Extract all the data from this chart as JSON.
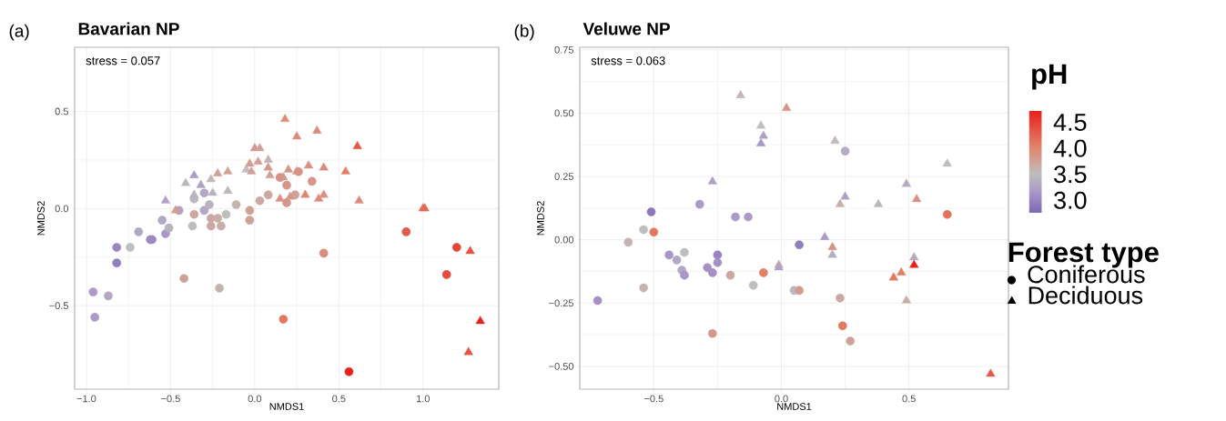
{
  "chart_data": [
    {
      "type": "scatter",
      "title": "Bavarian NP",
      "xlabel": "NMDS1",
      "ylabel": "NMDS2",
      "annotations": [
        "(a)",
        "stress = 0.057"
      ],
      "xlim": [
        -1.07,
        1.45
      ],
      "ylim": [
        -0.93,
        0.83
      ],
      "xticks": [
        {
          "value": -1.0,
          "label": "−1.0"
        },
        {
          "value": -0.5,
          "label": "−0.5"
        },
        {
          "value": 0.0,
          "label": "0.0"
        },
        {
          "value": 0.5,
          "label": "0.5"
        },
        {
          "value": 1.0,
          "label": "1.0"
        }
      ],
      "yticks": [
        {
          "value": -0.5,
          "label": "−0.5"
        },
        {
          "value": 0.0,
          "label": "0.0"
        },
        {
          "value": 0.5,
          "label": "0.5"
        }
      ],
      "grid": true,
      "series": [
        {
          "marker": "circle",
          "x": [
            -0.96,
            -0.87,
            -0.95,
            -0.82,
            -0.82,
            -0.74,
            -0.69,
            -0.62,
            -0.61,
            -0.55,
            -0.53,
            -0.51,
            -0.45,
            -0.42,
            -0.37,
            -0.36,
            -0.36,
            -0.3,
            -0.3,
            -0.27,
            -0.26,
            -0.26,
            -0.22,
            -0.2,
            -0.21,
            -0.17,
            -0.11,
            -0.03,
            -0.03,
            0.03,
            0.08,
            0.15,
            0.19,
            0.19,
            0.24,
            0.26,
            0.34,
            0.41,
            0.17,
            0.56,
            0.9,
            1.2,
            1.14
          ],
          "values": [
            -0.43,
            -0.45,
            -0.56,
            -0.2,
            -0.28,
            -0.2,
            -0.12,
            -0.16,
            -0.16,
            -0.06,
            -0.13,
            -0.1,
            -0.01,
            -0.36,
            -0.09,
            -0.03,
            0.05,
            0.08,
            -0.01,
            0.02,
            -0.05,
            -0.09,
            -0.05,
            -0.09,
            -0.41,
            -0.03,
            0.02,
            -0.01,
            -0.06,
            0.04,
            0.07,
            0.16,
            0.12,
            0.03,
            0.07,
            0.19,
            0.14,
            -0.23,
            -0.57,
            -0.84,
            -0.12,
            -0.2,
            -0.34
          ],
          "colors": [
            "#ad9bc7",
            "#b2a7c4",
            "#ad9bc7",
            "#9784c0",
            "#917ebe",
            "#bebebe",
            "#b2a7c4",
            "#9784c0",
            "#9e89c3",
            "#b2a7c4",
            "#aa96c8",
            "#b8b2c1",
            "#b0a1c5",
            "#cfa299",
            "#bebebe",
            "#cba8a1",
            "#bbb8bf",
            "#b2a7c4",
            "#b2a7c4",
            "#b8b2c1",
            "#cba8a1",
            "#cba8a1",
            "#c8ada8",
            "#c8ada8",
            "#c5b3af",
            "#bebebe",
            "#c5b3af",
            "#cfa299",
            "#cfa299",
            "#cba8a1",
            "#cba8a1",
            "#d99183",
            "#d5978b",
            "#d5978b",
            "#cfa299",
            "#d99183",
            "#d5978b",
            "#dc8c7c",
            "#e37861",
            "#e8211b",
            "#e45a49",
            "#e64437",
            "#e54c3d"
          ]
        },
        {
          "marker": "triangle",
          "x": [
            -0.53,
            -0.47,
            -0.41,
            -0.36,
            -0.36,
            -0.32,
            -0.26,
            -0.25,
            -0.22,
            -0.16,
            -0.16,
            -0.05,
            -0.03,
            -0.02,
            0.0,
            0.03,
            0.02,
            0.08,
            0.08,
            0.09,
            0.15,
            0.17,
            0.18,
            0.2,
            0.21,
            0.25,
            0.25,
            0.3,
            0.32,
            0.37,
            0.38,
            0.41,
            0.41,
            0.54,
            0.61,
            0.62,
            1.0,
            1.01,
            1.28,
            1.34,
            1.27
          ],
          "values": [
            0.04,
            -0.01,
            0.13,
            0.17,
            0.07,
            0.12,
            0.15,
            0.08,
            0.18,
            0.19,
            0.09,
            0.2,
            0.23,
            0.19,
            0.31,
            0.31,
            0.24,
            0.21,
            0.25,
            0.17,
            0.05,
            0.16,
            0.46,
            0.2,
            0.06,
            0.37,
            0.19,
            0.07,
            0.22,
            0.4,
            0.05,
            0.07,
            0.21,
            0.19,
            0.32,
            0.04,
            0.0,
            0.0,
            -0.22,
            -0.58,
            -0.74
          ],
          "colors": [
            "#b0a1c5",
            "#d29d92",
            "#bbb8bf",
            "#ad9bc7",
            "#b8b2c1",
            "#b0a1c5",
            "#c1b8b7",
            "#b8b2c1",
            "#cfa299",
            "#cfa299",
            "#c1b8b7",
            "#bebebe",
            "#d29d92",
            "#cfa299",
            "#d5978b",
            "#cfa299",
            "#d29d92",
            "#d5978b",
            "#c5b3af",
            "#cfa299",
            "#d99183",
            "#d5978b",
            "#dc8c7c",
            "#d5978b",
            "#d5978b",
            "#dc8c7c",
            "#d99183",
            "#e08674",
            "#d99183",
            "#dc8c7c",
            "#dc8c7c",
            "#d99183",
            "#dc8c7c",
            "#e28067",
            "#e45a49",
            "#dc8c7c",
            "#e3715b",
            "#e46955",
            "#e55343",
            "#e8211b",
            "#e55343"
          ]
        }
      ]
    },
    {
      "type": "scatter",
      "title": "Veluwe NP",
      "xlabel": "NMDS1",
      "ylabel": "NMDS2",
      "annotations": [
        "(b)",
        "stress = 0.063"
      ],
      "xlim": [
        -0.79,
        0.89
      ],
      "ylim": [
        -0.59,
        0.76
      ],
      "xticks": [
        {
          "value": -0.5,
          "label": "−0.5"
        },
        {
          "value": 0.0,
          "label": "0.0"
        },
        {
          "value": 0.5,
          "label": "0.5"
        }
      ],
      "yticks": [
        {
          "value": -0.5,
          "label": "−0.50"
        },
        {
          "value": -0.25,
          "label": "−0.25"
        },
        {
          "value": 0.0,
          "label": "0.00"
        },
        {
          "value": 0.25,
          "label": "0.25"
        },
        {
          "value": 0.5,
          "label": "0.50"
        },
        {
          "value": 0.75,
          "label": "0.75"
        }
      ],
      "grid": true,
      "clim": [
        2.76,
        4.72
      ],
      "clabel": "pH",
      "cticks": [
        {
          "value": 3.0,
          "label": "3.0"
        },
        {
          "value": 3.5,
          "label": "3.5"
        },
        {
          "value": 4.0,
          "label": "4.0"
        },
        {
          "value": 4.5,
          "label": "4.5"
        }
      ],
      "legend": "right",
      "legend_title": "Forest type",
      "series": [
        {
          "name": "Coniferous",
          "marker": "circle",
          "x": [
            -0.72,
            -0.6,
            -0.54,
            -0.54,
            -0.51,
            -0.5,
            -0.44,
            -0.41,
            -0.38,
            -0.39,
            -0.38,
            -0.32,
            -0.29,
            -0.27,
            -0.25,
            -0.25,
            -0.27,
            -0.2,
            -0.18,
            -0.13,
            -0.11,
            -0.07,
            0.05,
            0.07,
            0.07,
            0.25,
            0.23,
            0.24,
            0.27,
            0.65
          ],
          "values": [
            -0.24,
            -0.01,
            0.04,
            -0.19,
            0.11,
            0.03,
            -0.06,
            -0.08,
            -0.05,
            -0.12,
            -0.14,
            0.14,
            -0.11,
            -0.13,
            -0.06,
            -0.09,
            -0.37,
            -0.14,
            0.09,
            0.09,
            -0.18,
            -0.13,
            -0.2,
            -0.2,
            -0.02,
            0.35,
            -0.23,
            -0.34,
            -0.4,
            0.1
          ],
          "colors": [
            "#a490c5",
            "#c5b3af",
            "#bebebe",
            "#c5b3af",
            "#8b78bb",
            "#e37861",
            "#aa96c8",
            "#b2a7c4",
            "#bebebe",
            "#b2a7c4",
            "#aa96c8",
            "#ad9bc7",
            "#a490c5",
            "#a490c5",
            "#9784c0",
            "#a490c5",
            "#d5978b",
            "#cba8a1",
            "#ad9bc7",
            "#ad9bc7",
            "#bebebe",
            "#e28067",
            "#bbb8bf",
            "#d29d92",
            "#917ebe",
            "#b5acc2",
            "#cba8a1",
            "#e37861",
            "#cfa299",
            "#e3715b"
          ]
        },
        {
          "name": "Deciduous",
          "marker": "triangle",
          "x": [
            -0.16,
            0.02,
            -0.08,
            -0.07,
            -0.08,
            -0.27,
            0.21,
            0.65,
            0.49,
            0.25,
            0.23,
            0.38,
            0.53,
            0.17,
            0.2,
            0.2,
            -0.01,
            -0.01,
            0.52,
            0.52,
            0.47,
            0.44,
            0.49,
            0.82
          ],
          "values": [
            0.57,
            0.52,
            0.45,
            0.41,
            0.38,
            0.23,
            0.39,
            0.3,
            0.22,
            0.17,
            0.14,
            0.14,
            0.16,
            0.01,
            -0.03,
            -0.06,
            -0.1,
            -0.11,
            -0.07,
            -0.1,
            -0.13,
            -0.15,
            -0.24,
            -0.53
          ],
          "colors": [
            "#c1b8b7",
            "#d5978b",
            "#bebebe",
            "#b0a1c5",
            "#aa96c8",
            "#b0a1c5",
            "#c1b8b7",
            "#bebebe",
            "#b5acc2",
            "#b0a1c5",
            "#c8ada8",
            "#bbb8bf",
            "#d99183",
            "#ad9bc7",
            "#d99183",
            "#b5acc2",
            "#cba8a1",
            "#b0a1c5",
            "#b5acc2",
            "#e8211b",
            "#e28067",
            "#e37861",
            "#c8ada8",
            "#e45a49"
          ]
        }
      ]
    }
  ]
}
